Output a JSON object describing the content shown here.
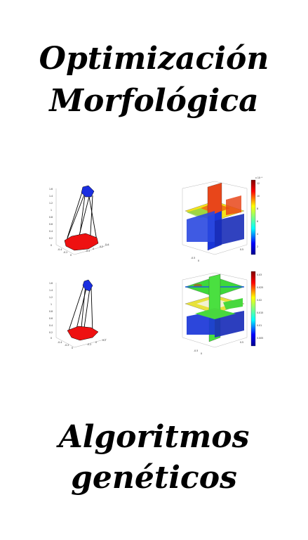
{
  "title_top": {
    "line1": "Optimización",
    "line2": "Morfológica"
  },
  "title_bottom": {
    "line1": "Algoritmos",
    "line2": "genéticos"
  },
  "figures": {
    "mesh_top": {
      "ticks_z": [
        "1.6",
        "1.4",
        "1.2",
        "1",
        "0.8",
        "0.6",
        "0.4",
        "0.2",
        "0"
      ],
      "ticks_x": [
        "-0.4",
        "-0.2",
        "0",
        "0.2",
        "0.4",
        "0.6"
      ],
      "ticks_y": [
        "-0.2",
        "0",
        "0.2",
        "0.4",
        "0.6"
      ]
    },
    "mesh_bottom": {
      "ticks_z": [
        "1.6",
        "1.4",
        "1.2",
        "1",
        "0.8",
        "0.6",
        "0.4",
        "0.2",
        "0"
      ],
      "ticks_x": [
        "-0.4",
        "-0.2",
        "0",
        "0.2",
        "0.4"
      ],
      "ticks_y": [
        "-0.2",
        "0",
        "0.2",
        "0.4"
      ]
    },
    "slice_top": {
      "colorbar_exp": "x 10⁻³",
      "colorbar_ticks": [
        "12",
        "10",
        "8",
        "6",
        "4",
        "2"
      ],
      "axis_ticks": [
        "-0.5",
        "0",
        "0.5"
      ]
    },
    "slice_bottom": {
      "colorbar_ticks": [
        "0.03",
        "0.025",
        "0.02",
        "0.015",
        "0.01",
        "0.005"
      ],
      "axis_ticks": [
        "-0.5",
        "0",
        "0.5"
      ]
    }
  },
  "colors": {
    "red": "#ee1111",
    "blue": "#1a2ee0",
    "text": "#000000"
  }
}
